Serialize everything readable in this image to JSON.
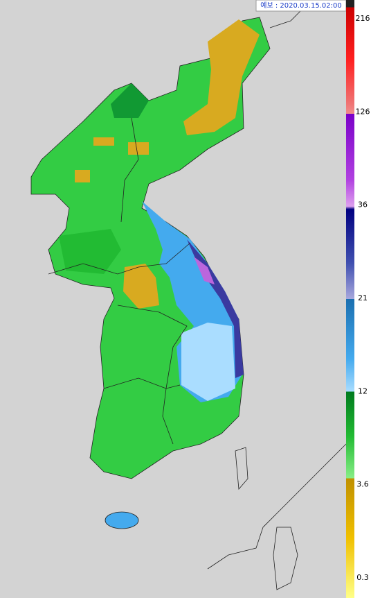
{
  "header": {
    "forecast_label": "예보 : 2020.03.15.02:00"
  },
  "legend": {
    "ticks": [
      216,
      126,
      36,
      21,
      12,
      3.6,
      0.3
    ]
  }
}
